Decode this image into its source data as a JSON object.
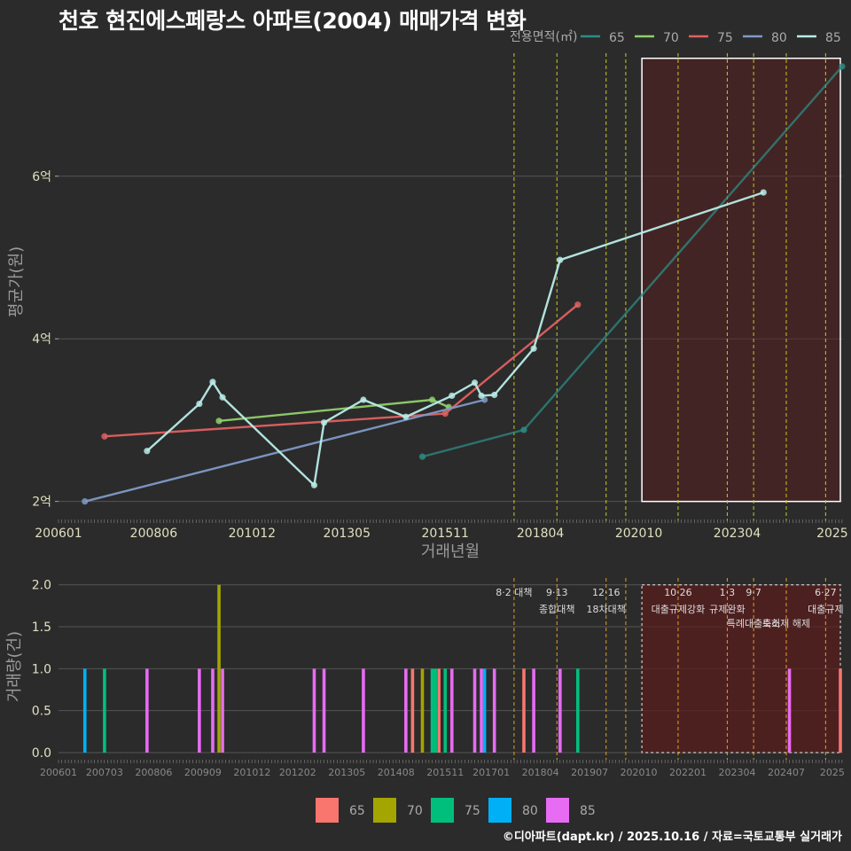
{
  "title": "천호 현진에스페랑스 아파트(2004) 매매가격 변화",
  "credit": "©디아파트(dapt.kr) / 2025.10.16 / 자료=국토교통부 실거래가",
  "colors": {
    "bg": "#2b2b2b",
    "line": {
      "65": "#2e8b84",
      "70": "#8fd06a",
      "75": "#e06060",
      "80": "#7f9ac6",
      "85": "#b8ece8"
    },
    "bar": {
      "65": "#f8766d",
      "70": "#a3a500",
      "75": "#00bf7d",
      "80": "#00b0f6",
      "85": "#e76bf3"
    }
  },
  "chart_data": [
    {
      "type": "line",
      "title": "",
      "xlabel": "거래년월",
      "ylabel": "평균가(원)",
      "xlim": [
        2006.0,
        2025.92
      ],
      "ylim": [
        1.8,
        7.6
      ],
      "y_ticks": [
        {
          "v": 2,
          "label": "2억"
        },
        {
          "v": 4,
          "label": "4억"
        },
        {
          "v": 6,
          "label": "6억"
        }
      ],
      "x_ticks": [
        {
          "v": 2006.0,
          "label": "200601"
        },
        {
          "v": 2008.42,
          "label": "200806"
        },
        {
          "v": 2010.92,
          "label": "201012"
        },
        {
          "v": 2013.33,
          "label": "201305"
        },
        {
          "v": 2015.83,
          "label": "201511"
        },
        {
          "v": 2018.25,
          "label": "201804"
        },
        {
          "v": 2020.75,
          "label": "202010"
        },
        {
          "v": 2023.25,
          "label": "202304"
        },
        {
          "v": 2025.67,
          "label": "2025"
        }
      ],
      "legend_title": "전용면적(㎡)",
      "legend": [
        "65",
        "70",
        "75",
        "80",
        "85"
      ],
      "series": [
        {
          "name": "65",
          "points": [
            [
              2015.25,
              2.55
            ],
            [
              2017.83,
              2.88
            ],
            [
              2026.0,
              7.35
            ]
          ]
        },
        {
          "name": "70",
          "points": [
            [
              2010.08,
              2.99
            ],
            [
              2015.5,
              3.25
            ],
            [
              2015.92,
              3.16
            ]
          ]
        },
        {
          "name": "75",
          "points": [
            [
              2007.17,
              2.8
            ],
            [
              2015.83,
              3.08
            ],
            [
              2019.2,
              4.42
            ]
          ]
        },
        {
          "name": "80",
          "points": [
            [
              2006.67,
              2.0
            ],
            [
              2016.83,
              3.25
            ]
          ]
        },
        {
          "name": "85",
          "points": [
            [
              2008.25,
              2.62
            ],
            [
              2009.58,
              3.2
            ],
            [
              2009.92,
              3.47
            ],
            [
              2010.17,
              3.28
            ],
            [
              2012.5,
              2.2
            ],
            [
              2012.75,
              2.97
            ],
            [
              2013.75,
              3.25
            ],
            [
              2014.83,
              3.04
            ],
            [
              2016.0,
              3.3
            ],
            [
              2016.58,
              3.46
            ],
            [
              2016.75,
              3.3
            ],
            [
              2017.08,
              3.31
            ],
            [
              2018.08,
              3.88
            ],
            [
              2018.75,
              4.97
            ],
            [
              2023.92,
              5.8
            ]
          ]
        }
      ],
      "highlight_box": {
        "x_from": 2020.83,
        "x_to": 2026.0,
        "y_from": 2.0,
        "y_to": 7.45
      }
    },
    {
      "type": "bar",
      "xlabel": "",
      "ylabel": "거래량(건)",
      "xlim": [
        2006.0,
        2025.92
      ],
      "ylim": [
        0,
        2.05
      ],
      "y_ticks": [
        {
          "v": 0,
          "label": "0.0"
        },
        {
          "v": 0.5,
          "label": "0.5"
        },
        {
          "v": 1,
          "label": "1.0"
        },
        {
          "v": 1.5,
          "label": "1.5"
        },
        {
          "v": 2,
          "label": "2.0"
        }
      ],
      "x_ticks": [
        {
          "v": 2006.0,
          "label": "200601"
        },
        {
          "v": 2007.17,
          "label": "200703"
        },
        {
          "v": 2008.42,
          "label": "200806"
        },
        {
          "v": 2009.67,
          "label": "200909"
        },
        {
          "v": 2010.92,
          "label": "201012"
        },
        {
          "v": 2012.08,
          "label": "201202"
        },
        {
          "v": 2013.33,
          "label": "201305"
        },
        {
          "v": 2014.58,
          "label": "201408"
        },
        {
          "v": 2015.83,
          "label": "201511"
        },
        {
          "v": 2017.0,
          "label": "201701"
        },
        {
          "v": 2018.25,
          "label": "201804"
        },
        {
          "v": 2019.5,
          "label": "201907"
        },
        {
          "v": 2020.75,
          "label": "202010"
        },
        {
          "v": 2022.0,
          "label": "202201"
        },
        {
          "v": 2023.25,
          "label": "202304"
        },
        {
          "v": 2024.5,
          "label": "202407"
        },
        {
          "v": 2025.67,
          "label": "2025"
        }
      ],
      "legend": [
        "65",
        "70",
        "75",
        "80",
        "85"
      ],
      "bars": [
        {
          "x": 2006.67,
          "size": "80",
          "count": 1
        },
        {
          "x": 2007.17,
          "size": "75",
          "count": 1
        },
        {
          "x": 2008.25,
          "size": "85",
          "count": 1
        },
        {
          "x": 2009.58,
          "size": "85",
          "count": 1
        },
        {
          "x": 2009.92,
          "size": "85",
          "count": 1
        },
        {
          "x": 2010.08,
          "size": "70",
          "count": 2
        },
        {
          "x": 2010.17,
          "size": "85",
          "count": 1
        },
        {
          "x": 2012.5,
          "size": "85",
          "count": 1
        },
        {
          "x": 2012.75,
          "size": "85",
          "count": 1
        },
        {
          "x": 2013.75,
          "size": "85",
          "count": 1
        },
        {
          "x": 2014.83,
          "size": "85",
          "count": 1
        },
        {
          "x": 2015.0,
          "size": "65",
          "count": 1
        },
        {
          "x": 2015.25,
          "size": "70",
          "count": 1
        },
        {
          "x": 2015.5,
          "size": "75",
          "count": 1
        },
        {
          "x": 2015.58,
          "size": "75",
          "count": 1
        },
        {
          "x": 2015.67,
          "size": "65",
          "count": 1
        },
        {
          "x": 2015.83,
          "size": "75",
          "count": 1
        },
        {
          "x": 2016.0,
          "size": "85",
          "count": 1
        },
        {
          "x": 2016.58,
          "size": "85",
          "count": 1
        },
        {
          "x": 2016.75,
          "size": "85",
          "count": 1
        },
        {
          "x": 2016.83,
          "size": "80",
          "count": 1
        },
        {
          "x": 2017.08,
          "size": "85",
          "count": 1
        },
        {
          "x": 2017.83,
          "size": "65",
          "count": 1
        },
        {
          "x": 2018.08,
          "size": "85",
          "count": 1
        },
        {
          "x": 2018.75,
          "size": "85",
          "count": 1
        },
        {
          "x": 2019.2,
          "size": "75",
          "count": 1
        },
        {
          "x": 2024.58,
          "size": "85",
          "count": 1
        },
        {
          "x": 2025.9,
          "size": "65",
          "count": 1
        }
      ],
      "highlight_box": {
        "x_from": 2020.83,
        "x_to": 2026.0,
        "y_from": 0,
        "y_to": 2.0
      }
    }
  ],
  "events": [
    {
      "x": 2017.58,
      "date": "8·2 대책",
      "label": ""
    },
    {
      "x": 2018.67,
      "date": "9·13",
      "label": "종합대책"
    },
    {
      "x": 2019.92,
      "date": "12·16",
      "label": "18차대책"
    },
    {
      "x": 2020.42,
      "date": "",
      "label": ""
    },
    {
      "x": 2021.75,
      "date": "10·26",
      "label": "대출규제강화"
    },
    {
      "x": 2023.0,
      "date": "1·3",
      "label": "규제완화"
    },
    {
      "x": 2023.67,
      "date": "9·7",
      "label": "특례대출축소"
    },
    {
      "x": 2024.5,
      "date": "",
      "label": "토허제 해제"
    },
    {
      "x": 2025.5,
      "date": "6·27",
      "label": "대출규제"
    }
  ]
}
